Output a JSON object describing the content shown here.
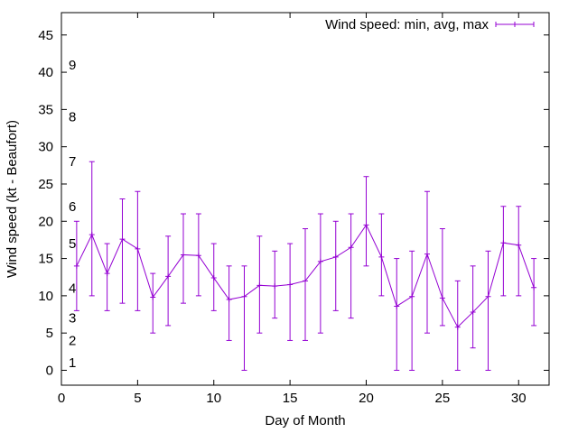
{
  "chart_data": {
    "type": "line",
    "title": "",
    "xlabel": "Day of Month",
    "ylabel": "Wind speed (kt - Beaufort)",
    "xlim": [
      0,
      32
    ],
    "ylim": [
      -2,
      48
    ],
    "x_ticks": [
      0,
      5,
      10,
      15,
      20,
      25,
      30
    ],
    "y_ticks": [
      0,
      5,
      10,
      15,
      20,
      25,
      30,
      35,
      40,
      45
    ],
    "grid": false,
    "legend_position": "top-right",
    "beaufort_labels": [
      {
        "label": "1",
        "y": 1
      },
      {
        "label": "2",
        "y": 4
      },
      {
        "label": "3",
        "y": 7
      },
      {
        "label": "4",
        "y": 11
      },
      {
        "label": "5",
        "y": 17
      },
      {
        "label": "6",
        "y": 22
      },
      {
        "label": "7",
        "y": 28
      },
      {
        "label": "8",
        "y": 34
      },
      {
        "label": "9",
        "y": 41
      }
    ],
    "series": [
      {
        "name": "Wind speed: min, avg, max",
        "color": "#9400d3",
        "x": [
          1,
          2,
          3,
          4,
          5,
          6,
          7,
          8,
          9,
          10,
          11,
          12,
          13,
          14,
          15,
          16,
          17,
          18,
          19,
          20,
          21,
          22,
          23,
          24,
          25,
          26,
          27,
          28,
          29,
          30,
          31
        ],
        "avg": [
          14,
          18.2,
          13,
          17.6,
          16.3,
          9.8,
          12.6,
          15.5,
          15.4,
          12.4,
          9.5,
          9.9,
          11.4,
          11.3,
          11.5,
          12,
          14.6,
          15.2,
          16.5,
          19.5,
          15.2,
          8.6,
          9.9,
          15.6,
          9.7,
          5.8,
          7.8,
          9.9,
          17.1,
          16.8,
          11.1
        ],
        "min": [
          8,
          10,
          8,
          9,
          8,
          5,
          6,
          9,
          10,
          8,
          4,
          0,
          5,
          7,
          4,
          4,
          5,
          8,
          7,
          14,
          10,
          0,
          0,
          5,
          6,
          0,
          3,
          0,
          10,
          10,
          6
        ],
        "max": [
          20,
          28,
          17,
          23,
          24,
          13,
          18,
          21,
          21,
          17,
          14,
          14,
          18,
          16,
          17,
          19,
          21,
          20,
          21,
          26,
          21,
          15,
          16,
          24,
          19,
          12,
          14,
          16,
          22,
          22,
          15
        ]
      }
    ]
  }
}
